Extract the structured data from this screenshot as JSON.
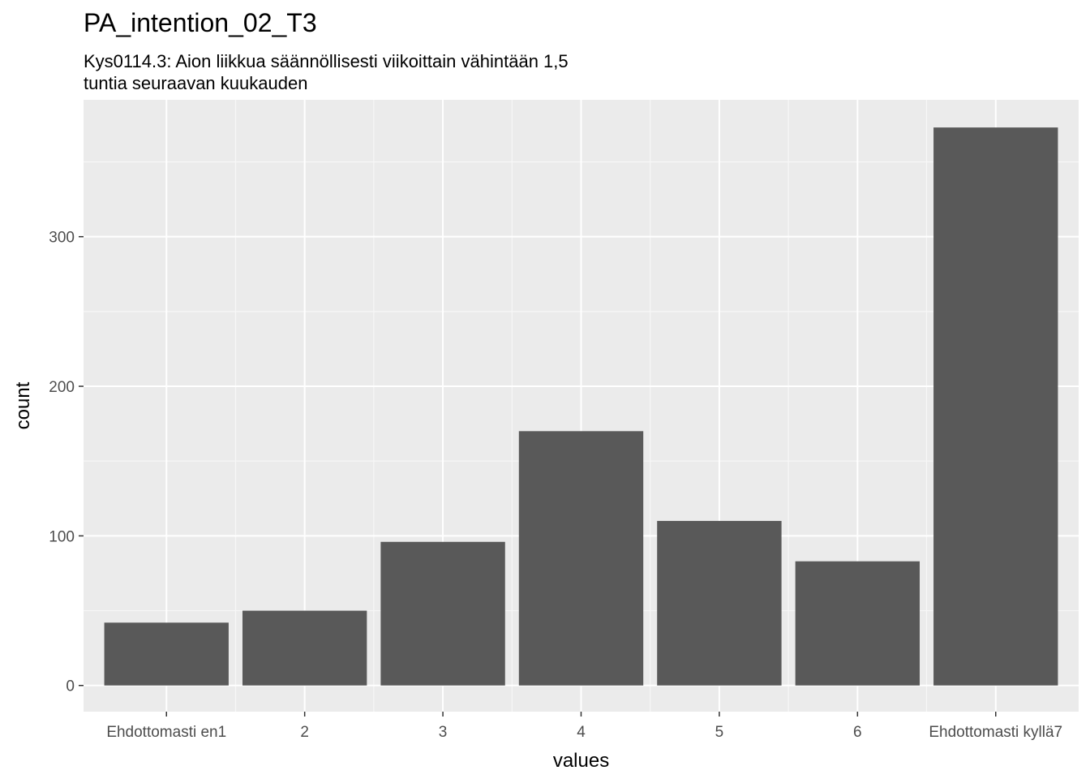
{
  "chart_data": {
    "type": "bar",
    "title": "PA_intention_02_T3",
    "subtitle": [
      "Kys0114.3: Aion liikkua säännöllisesti viikoittain vähintään 1,5",
      "tuntia seuraavan kuukauden"
    ],
    "xlabel": "values",
    "ylabel": "count",
    "categories": [
      "Ehdottomasti en1",
      "2",
      "3",
      "4",
      "5",
      "6",
      "Ehdottomasti kyllä7"
    ],
    "values": [
      42,
      50,
      96,
      170,
      110,
      83,
      373
    ],
    "ylim": [
      -17.5,
      391.5
    ],
    "yticks": [
      0,
      100,
      200,
      300
    ],
    "grid": true,
    "colors": {
      "bar": "#595959",
      "panel": "#ebebeb",
      "grid_major": "#ffffff",
      "grid_minor": "#f7f7f7"
    }
  }
}
